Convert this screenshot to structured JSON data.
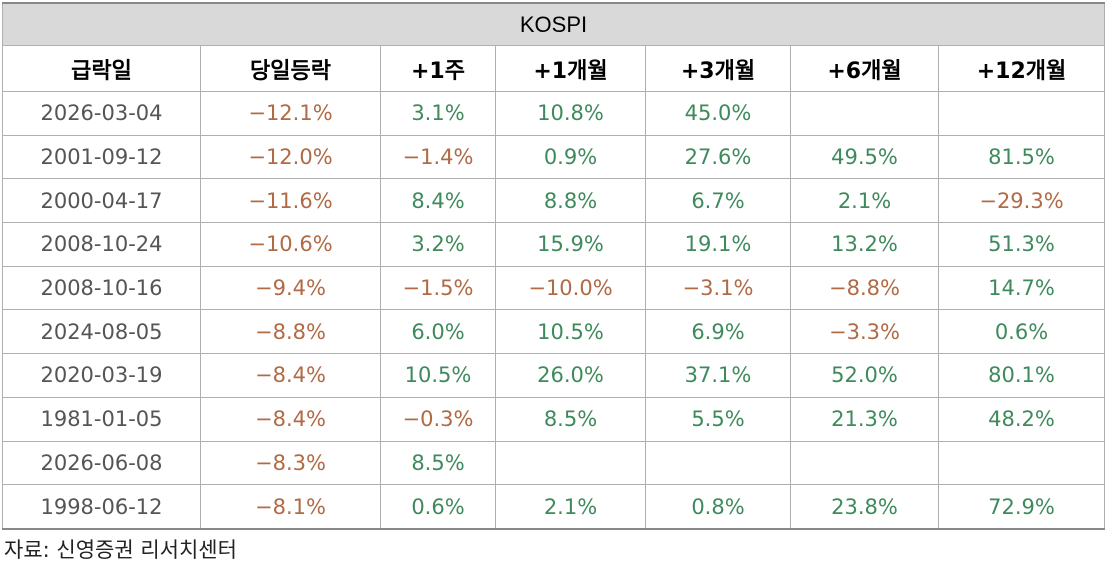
{
  "table": {
    "title": "KOSPI",
    "columns": [
      "급락일",
      "당일등락",
      "+1주",
      "+1개월",
      "+3개월",
      "+6개월",
      "+12개월"
    ],
    "rows": [
      [
        "2026-03-04",
        "−12.1%",
        "3.1%",
        "10.8%",
        "45.0%",
        null,
        null
      ],
      [
        "2001-09-12",
        "−12.0%",
        "−1.4%",
        "0.9%",
        "27.6%",
        "49.5%",
        "81.5%"
      ],
      [
        "2000-04-17",
        "−11.6%",
        "8.4%",
        "8.8%",
        "6.7%",
        "2.1%",
        "−29.3%"
      ],
      [
        "2008-10-24",
        "−10.6%",
        "3.2%",
        "15.9%",
        "19.1%",
        "13.2%",
        "51.3%"
      ],
      [
        "2008-10-16",
        "−9.4%",
        "−1.5%",
        "−10.0%",
        "−3.1%",
        "−8.8%",
        "14.7%"
      ],
      [
        "2024-08-05",
        "−8.8%",
        "6.0%",
        "10.5%",
        "6.9%",
        "−3.3%",
        "0.6%"
      ],
      [
        "2020-03-19",
        "−8.4%",
        "10.5%",
        "26.0%",
        "37.1%",
        "52.0%",
        "80.1%"
      ],
      [
        "1981-01-05",
        "−8.4%",
        "−0.3%",
        "8.5%",
        "5.5%",
        "21.3%",
        "48.2%"
      ],
      [
        "2026-06-08",
        "−8.3%",
        "8.5%",
        null,
        null,
        null,
        null
      ],
      [
        "1998-06-12",
        "−8.1%",
        "0.6%",
        "2.1%",
        "0.8%",
        "23.8%",
        "72.9%"
      ]
    ]
  },
  "source": "자료: 신영증권 리서치센터"
}
